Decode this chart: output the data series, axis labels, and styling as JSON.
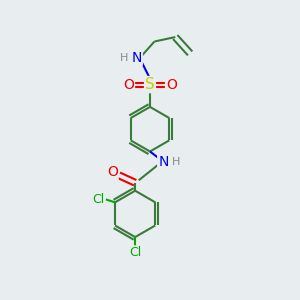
{
  "background_color": "#e8eef0",
  "line_color": "#3a7a3a",
  "atom_colors": {
    "N": "#0000ee",
    "O": "#ee0000",
    "S": "#cccc00",
    "Cl": "#00aa00",
    "H": "#888888",
    "C": "#3a7a3a"
  },
  "line_width": 1.5,
  "font_size_atoms": 10,
  "font_size_small": 8,
  "xlim": [
    0,
    10
  ],
  "ylim": [
    0,
    10
  ]
}
